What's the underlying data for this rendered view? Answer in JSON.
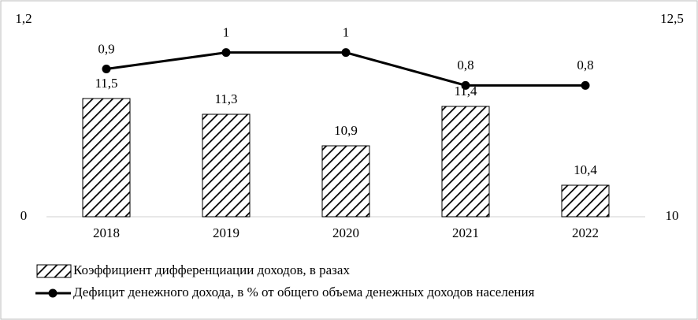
{
  "chart_data": {
    "type": "bar",
    "categories": [
      "2018",
      "2019",
      "2020",
      "2021",
      "2022"
    ],
    "series": [
      {
        "name": "Коэффициент дифференциации доходов, в разах",
        "type": "bar",
        "axis": "y2",
        "color": "#000000",
        "hatch": true,
        "values": [
          11.5,
          11.3,
          10.9,
          11.4,
          10.4
        ],
        "value_labels": [
          "11,5",
          "11,3",
          "10,9",
          "11,4",
          "10,4"
        ]
      },
      {
        "name": "Дефицит денежного дохода, в % от общего объема денежных доходов населения",
        "type": "line",
        "color": "#000000",
        "values": [
          0.9,
          1,
          1,
          0.8,
          0.8
        ],
        "value_labels": [
          "0,9",
          "1",
          "1",
          "0,8",
          "0,8"
        ]
      }
    ],
    "ylim": [
      0,
      1.2
    ],
    "yticks": [
      0,
      {
        "value": 1.2,
        "label": "1,2"
      }
    ],
    "y2lim": [
      10,
      12.5
    ],
    "y2ticks": [
      10,
      {
        "value": 12.5,
        "label": "12,5"
      }
    ],
    "legend": "bottom"
  }
}
